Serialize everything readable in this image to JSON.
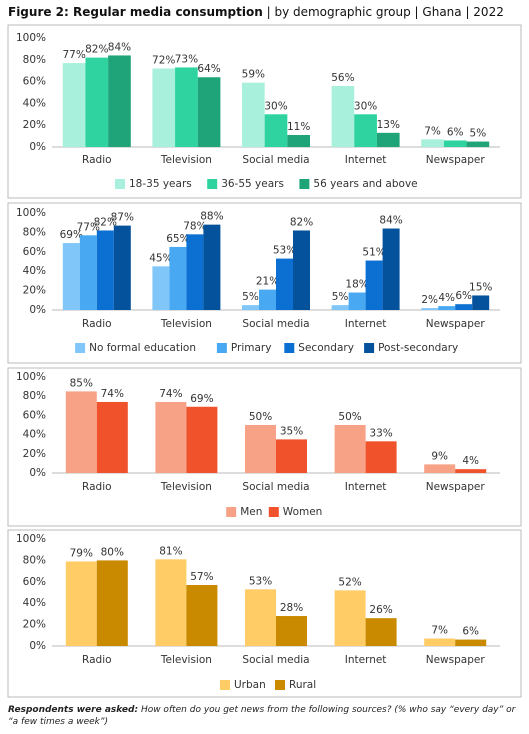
{
  "title": {
    "bold": "Figure 2: Regular media consumption",
    "rest": "| by demographic group | Ghana | 2022"
  },
  "footnote": {
    "bold": "Respondents were asked:",
    "rest": "How often do you get news from the following sources? (% who say “every day” or “a few times a week”)"
  },
  "chart_data": [
    {
      "type": "bar",
      "categories": [
        "Radio",
        "Television",
        "Social media",
        "Internet",
        "Newspaper"
      ],
      "ylim": [
        0,
        100
      ],
      "yticks": [
        {
          "value": 0,
          "label": "0%"
        },
        {
          "value": 20,
          "label": "20%"
        },
        {
          "value": 40,
          "label": "40%"
        },
        {
          "value": 60,
          "label": "60%"
        },
        {
          "value": 80,
          "label": "80%"
        },
        {
          "value": 100,
          "label": "100%"
        }
      ],
      "series": [
        {
          "name": "18-35 years",
          "color": "#a8f0dc",
          "values": [
            77,
            72,
            59,
            56,
            7
          ],
          "value_labels": [
            "77%",
            "72%",
            "59%",
            "56%",
            "7%"
          ]
        },
        {
          "name": "36-55 years",
          "color": "#2ed3a0",
          "values": [
            82,
            73,
            30,
            30,
            6
          ],
          "value_labels": [
            "82%",
            "73%",
            "30%",
            "30%",
            "6%"
          ]
        },
        {
          "name": "56 years and above",
          "color": "#1ea478",
          "values": [
            84,
            64,
            11,
            13,
            5
          ],
          "value_labels": [
            "84%",
            "64%",
            "11%",
            "13%",
            "5%"
          ]
        }
      ]
    },
    {
      "type": "bar",
      "categories": [
        "Radio",
        "Television",
        "Social media",
        "Internet",
        "Newspaper"
      ],
      "ylim": [
        0,
        100
      ],
      "yticks": [
        {
          "value": 0,
          "label": "0%"
        },
        {
          "value": 20,
          "label": "20%"
        },
        {
          "value": 40,
          "label": "40%"
        },
        {
          "value": 60,
          "label": "60%"
        },
        {
          "value": 80,
          "label": "80%"
        },
        {
          "value": 100,
          "label": "100%"
        }
      ],
      "series": [
        {
          "name": "No formal education",
          "color": "#80c6f8",
          "values": [
            69,
            45,
            5,
            5,
            2
          ],
          "value_labels": [
            "69%",
            "45%",
            "5%",
            "5%",
            "2%"
          ]
        },
        {
          "name": "Primary",
          "color": "#48a9f2",
          "values": [
            77,
            65,
            21,
            18,
            4
          ],
          "value_labels": [
            "77%",
            "65%",
            "21%",
            "18%",
            "4%"
          ]
        },
        {
          "name": "Secondary",
          "color": "#0b70d2",
          "values": [
            82,
            78,
            53,
            51,
            6
          ],
          "value_labels": [
            "82%",
            "78%",
            "53%",
            "51%",
            "6%"
          ]
        },
        {
          "name": "Post-secondary",
          "color": "#04529c",
          "values": [
            87,
            88,
            82,
            84,
            15
          ],
          "value_labels": [
            "87%",
            "88%",
            "82%",
            "84%",
            "15%"
          ]
        }
      ]
    },
    {
      "type": "bar",
      "categories": [
        "Radio",
        "Television",
        "Social media",
        "Internet",
        "Newspaper"
      ],
      "ylim": [
        0,
        100
      ],
      "yticks": [
        {
          "value": 0,
          "label": "0%"
        },
        {
          "value": 20,
          "label": "20%"
        },
        {
          "value": 40,
          "label": "40%"
        },
        {
          "value": 60,
          "label": "60%"
        },
        {
          "value": 80,
          "label": "80%"
        },
        {
          "value": 100,
          "label": "100%"
        }
      ],
      "series": [
        {
          "name": "Men",
          "color": "#f7a286",
          "values": [
            85,
            74,
            50,
            50,
            9
          ],
          "value_labels": [
            "85%",
            "74%",
            "50%",
            "50%",
            "9%"
          ]
        },
        {
          "name": "Women",
          "color": "#f0532b",
          "values": [
            74,
            69,
            35,
            33,
            4
          ],
          "value_labels": [
            "74%",
            "69%",
            "35%",
            "33%",
            "4%"
          ]
        }
      ]
    },
    {
      "type": "bar",
      "categories": [
        "Radio",
        "Television",
        "Social media",
        "Internet",
        "Newspaper"
      ],
      "ylim": [
        0,
        100
      ],
      "yticks": [
        {
          "value": 0,
          "label": "0%"
        },
        {
          "value": 20,
          "label": "20%"
        },
        {
          "value": 40,
          "label": "40%"
        },
        {
          "value": 60,
          "label": "60%"
        },
        {
          "value": 80,
          "label": "80%"
        },
        {
          "value": 100,
          "label": "100%"
        }
      ],
      "series": [
        {
          "name": "Urban",
          "color": "#ffcc66",
          "values": [
            79,
            81,
            53,
            52,
            7
          ],
          "value_labels": [
            "79%",
            "81%",
            "53%",
            "52%",
            "7%"
          ]
        },
        {
          "name": "Rural",
          "color": "#c98a00",
          "values": [
            80,
            57,
            28,
            26,
            6
          ],
          "value_labels": [
            "80%",
            "57%",
            "28%",
            "26%",
            "6%"
          ]
        }
      ]
    }
  ]
}
